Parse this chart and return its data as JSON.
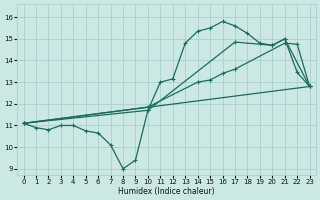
{
  "xlabel": "Humidex (Indice chaleur)",
  "bg_color": "#cce8e5",
  "grid_color": "#aacfcc",
  "line_color": "#1a6b5e",
  "xlim": [
    -0.5,
    23.5
  ],
  "ylim": [
    8.7,
    16.6
  ],
  "xticks": [
    0,
    1,
    2,
    3,
    4,
    5,
    6,
    7,
    8,
    9,
    10,
    11,
    12,
    13,
    14,
    15,
    16,
    17,
    18,
    19,
    20,
    21,
    22,
    23
  ],
  "yticks": [
    9,
    10,
    11,
    12,
    13,
    14,
    15,
    16
  ],
  "line1_x": [
    0,
    1,
    2,
    3,
    4,
    5,
    6,
    7,
    8,
    9,
    10,
    11,
    12,
    13,
    14,
    15,
    16,
    17,
    18,
    19,
    20,
    21,
    22,
    23
  ],
  "line1_y": [
    11.1,
    10.9,
    10.8,
    11.0,
    11.0,
    10.75,
    10.65,
    10.1,
    9.0,
    9.4,
    11.7,
    13.0,
    13.15,
    14.8,
    15.35,
    15.5,
    15.8,
    15.6,
    15.25,
    14.8,
    14.7,
    15.0,
    13.45,
    12.8
  ],
  "line2_x": [
    0,
    10,
    14,
    15,
    16,
    17,
    21,
    22,
    23
  ],
  "line2_y": [
    11.1,
    11.85,
    13.0,
    13.1,
    13.4,
    13.6,
    14.8,
    14.75,
    12.8
  ],
  "line3_x": [
    0,
    10,
    17,
    20,
    21,
    23
  ],
  "line3_y": [
    11.1,
    11.7,
    14.85,
    14.7,
    15.0,
    12.8
  ],
  "line4_x": [
    0,
    23
  ],
  "line4_y": [
    11.1,
    12.8
  ]
}
